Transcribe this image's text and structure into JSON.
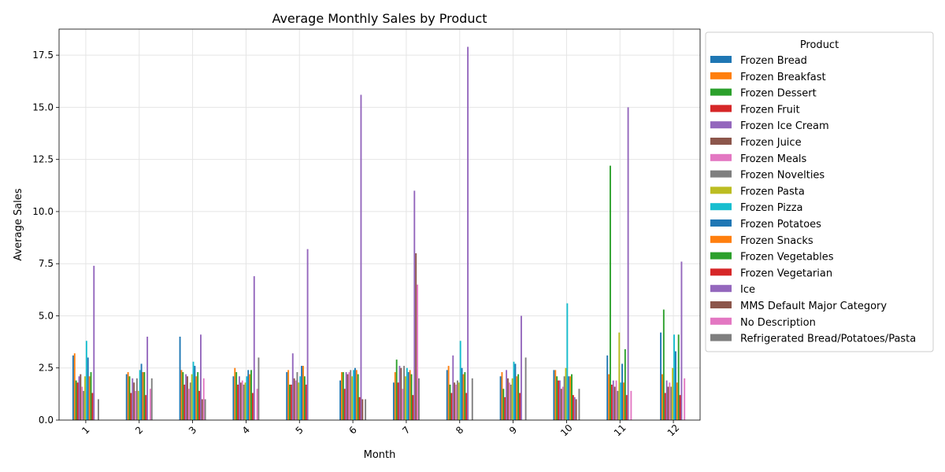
{
  "chart_data": {
    "type": "bar",
    "title": "Average Monthly Sales by Product",
    "xlabel": "Month",
    "ylabel": "Average Sales",
    "categories": [
      "1",
      "2",
      "3",
      "4",
      "5",
      "6",
      "7",
      "8",
      "9",
      "10",
      "11",
      "12"
    ],
    "ylim": [
      0,
      18.75
    ],
    "yticks": [
      "0.0",
      "2.5",
      "5.0",
      "7.5",
      "10.0",
      "12.5",
      "15.0",
      "17.5"
    ],
    "grid": true,
    "legend": {
      "title": "Product",
      "placement": "outside-right"
    },
    "series": [
      {
        "name": "Frozen Bread",
        "color": "#1f77b4",
        "values": [
          3.1,
          2.2,
          4.0,
          2.1,
          2.3,
          1.9,
          1.8,
          2.4,
          2.1,
          2.4,
          3.1,
          4.2
        ]
      },
      {
        "name": "Frozen Breakfast",
        "color": "#ff7f0e",
        "values": [
          3.2,
          2.3,
          2.4,
          2.5,
          2.4,
          2.3,
          2.3,
          2.6,
          2.3,
          2.4,
          2.2,
          2.2
        ]
      },
      {
        "name": "Frozen Dessert",
        "color": "#2ca02c",
        "values": [
          1.9,
          2.1,
          2.3,
          2.3,
          1.7,
          2.3,
          2.9,
          1.7,
          1.5,
          2.1,
          12.2,
          5.3
        ]
      },
      {
        "name": "Frozen Fruit",
        "color": "#d62728",
        "values": [
          1.8,
          1.3,
          1.7,
          1.7,
          1.7,
          1.5,
          1.8,
          1.3,
          1.1,
          1.9,
          1.7,
          1.3
        ]
      },
      {
        "name": "Frozen Ice Cream",
        "color": "#9467bd",
        "values": [
          2.1,
          2.0,
          2.2,
          2.1,
          3.2,
          2.3,
          2.6,
          3.1,
          2.4,
          1.9,
          1.9,
          1.9
        ]
      },
      {
        "name": "Frozen Juice",
        "color": "#8c564b",
        "values": [
          2.2,
          1.8,
          2.1,
          1.8,
          2.0,
          2.2,
          2.5,
          1.8,
          2.0,
          1.5,
          1.6,
          1.6
        ]
      },
      {
        "name": "Frozen Meals",
        "color": "#e377c2",
        "values": [
          1.6,
          1.4,
          1.5,
          1.9,
          1.9,
          2.3,
          1.5,
          1.7,
          1.8,
          1.6,
          1.9,
          1.8
        ]
      },
      {
        "name": "Frozen Novelties",
        "color": "#7f7f7f",
        "values": [
          1.4,
          2.0,
          1.8,
          1.7,
          2.3,
          2.4,
          2.6,
          1.9,
          1.7,
          2.1,
          1.4,
          1.6
        ]
      },
      {
        "name": "Frozen Pasta",
        "color": "#bcbd22",
        "values": [
          2.1,
          1.4,
          2.2,
          1.8,
          1.8,
          2.1,
          2.1,
          1.8,
          2.0,
          2.5,
          4.2,
          2.5
        ]
      },
      {
        "name": "Frozen Pizza",
        "color": "#17becf",
        "values": [
          3.8,
          2.4,
          2.8,
          2.1,
          2.1,
          2.4,
          2.5,
          3.8,
          2.8,
          5.6,
          1.8,
          4.1
        ]
      },
      {
        "name": "Frozen Potatoes",
        "color": "#1f77b4",
        "values": [
          3.0,
          2.7,
          2.6,
          2.4,
          2.6,
          2.5,
          2.3,
          2.5,
          2.7,
          2.1,
          2.7,
          3.3
        ]
      },
      {
        "name": "Frozen Snacks",
        "color": "#ff7f0e",
        "values": [
          2.1,
          2.3,
          2.1,
          2.2,
          2.6,
          2.4,
          2.4,
          2.2,
          2.1,
          2.1,
          1.8,
          1.8
        ]
      },
      {
        "name": "Frozen Vegetables",
        "color": "#2ca02c",
        "values": [
          2.3,
          2.3,
          2.3,
          2.4,
          2.1,
          2.2,
          2.2,
          2.3,
          2.2,
          2.2,
          3.4,
          4.1
        ]
      },
      {
        "name": "Frozen Vegetarian",
        "color": "#d62728",
        "values": [
          1.3,
          1.2,
          1.4,
          1.3,
          1.7,
          1.1,
          1.2,
          1.3,
          1.3,
          1.2,
          1.2,
          1.2
        ]
      },
      {
        "name": "Ice",
        "color": "#9467bd",
        "values": [
          7.4,
          4.0,
          4.1,
          6.9,
          8.2,
          15.6,
          11.0,
          17.9,
          5.0,
          1.1,
          15.0,
          7.6
        ]
      },
      {
        "name": "MMS Default Major Category",
        "color": "#8c564b",
        "values": [
          0,
          0,
          1.0,
          0,
          0,
          1.0,
          8.0,
          0,
          0,
          1.0,
          0,
          0
        ]
      },
      {
        "name": "No Description",
        "color": "#e377c2",
        "values": [
          0,
          1.5,
          2.0,
          1.5,
          0,
          0,
          6.5,
          0,
          0,
          0,
          1.4,
          2.0
        ]
      },
      {
        "name": "Refrigerated Bread/Potatoes/Pasta",
        "color": "#7f7f7f",
        "values": [
          1.0,
          2.0,
          1.0,
          3.0,
          0,
          1.0,
          2.0,
          2.0,
          3.0,
          1.5,
          0,
          0
        ]
      }
    ]
  }
}
